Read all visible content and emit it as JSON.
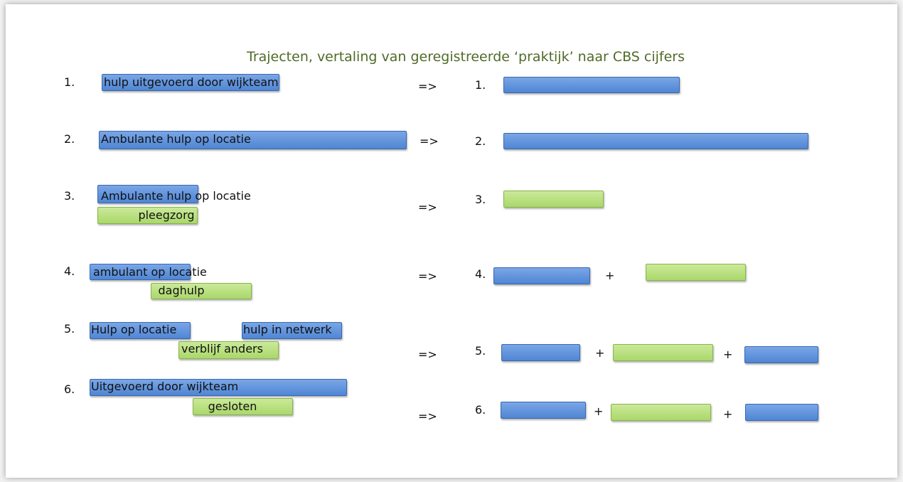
{
  "title": "Trajecten, vertaling van geregistreerde ‘praktijk’ naar CBS cijfers",
  "rows": [
    {
      "number": "1.",
      "items": [
        "hulp uitgevoerd door wijkteam"
      ],
      "arrow": "=>",
      "result_number": "1.",
      "operators": []
    },
    {
      "number": "2.",
      "items": [
        "Ambulante hulp op locatie"
      ],
      "arrow": "=>",
      "result_number": "2.",
      "operators": []
    },
    {
      "number": "3.",
      "items": [
        "Ambulante hulp op locatie",
        "pleegzorg"
      ],
      "arrow": "=>",
      "result_number": "3.",
      "operators": []
    },
    {
      "number": "4.",
      "items": [
        "ambulant op locatie",
        "daghulp"
      ],
      "arrow": "=>",
      "result_number": "4.",
      "operators": [
        "+"
      ]
    },
    {
      "number": "5.",
      "items": [
        "Hulp op locatie",
        "hulp in netwerk",
        "verblijf anders"
      ],
      "arrow": "=>",
      "result_number": "5.",
      "operators": [
        "+",
        "+"
      ]
    },
    {
      "number": "6.",
      "items": [
        "Uitgevoerd door wijkteam",
        "gesloten"
      ],
      "arrow": "=>",
      "result_number": "6.",
      "operators": [
        "+",
        "+"
      ]
    }
  ]
}
